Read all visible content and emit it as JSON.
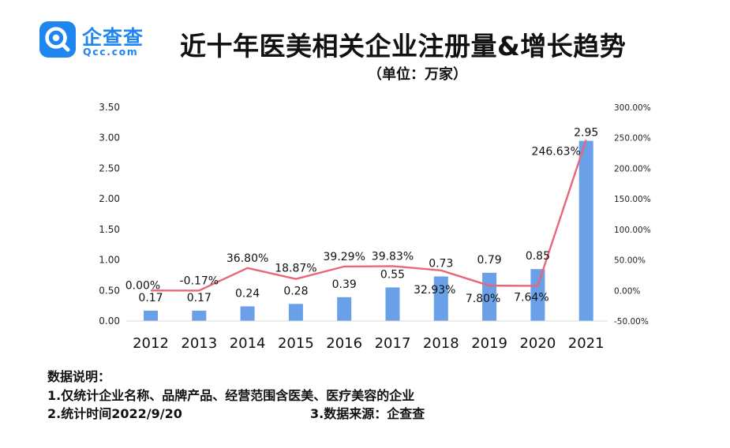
{
  "brand": {
    "name": "企查查",
    "domain": "Qcc.com",
    "color": "#1f86ef"
  },
  "chart_data": {
    "type": "bar+line",
    "title": "近十年医美相关企业注册量&增长趋势",
    "subtitle": "（单位：万家）",
    "categories": [
      "2012",
      "2013",
      "2014",
      "2015",
      "2016",
      "2017",
      "2018",
      "2019",
      "2020",
      "2021"
    ],
    "series": [
      {
        "type": "bar",
        "axis": "left",
        "color": "#6aa0e8",
        "values": [
          0.17,
          0.17,
          0.24,
          0.28,
          0.39,
          0.55,
          0.73,
          0.79,
          0.85,
          2.95
        ],
        "labels": [
          "0.17",
          "0.17",
          "0.24",
          "0.28",
          "0.39",
          "0.55",
          "0.73",
          "0.79",
          "0.85",
          "2.95"
        ]
      },
      {
        "type": "line",
        "axis": "right",
        "color": "#e8677a",
        "values": [
          0.0,
          -0.17,
          36.8,
          18.87,
          39.29,
          39.83,
          32.93,
          7.8,
          7.64,
          246.63
        ],
        "labels": [
          "0.00%",
          "-0.17%",
          "36.80%",
          "18.87%",
          "39.29%",
          "39.83%",
          "32.93%",
          "7.80%",
          "7.64%",
          "246.63%"
        ]
      }
    ],
    "y_left": {
      "range": [
        0,
        3.5
      ],
      "ticks": [
        "0.00",
        "0.50",
        "1.00",
        "1.50",
        "2.00",
        "2.50",
        "3.00",
        "3.50"
      ]
    },
    "y_right": {
      "range": [
        -50,
        300
      ],
      "ticks": [
        "-50.00%",
        "0.00%",
        "50.00%",
        "100.00%",
        "150.00%",
        "200.00%",
        "250.00%",
        "300.00%"
      ]
    },
    "grid": false,
    "legend": "none"
  },
  "notes": {
    "heading": "数据说明：",
    "line1": "1.仅统计企业名称、品牌产品、经营范围含医美、医疗美容的企业",
    "line2": "2.统计时间2022/9/20",
    "line3": "3.数据来源：企查查"
  }
}
